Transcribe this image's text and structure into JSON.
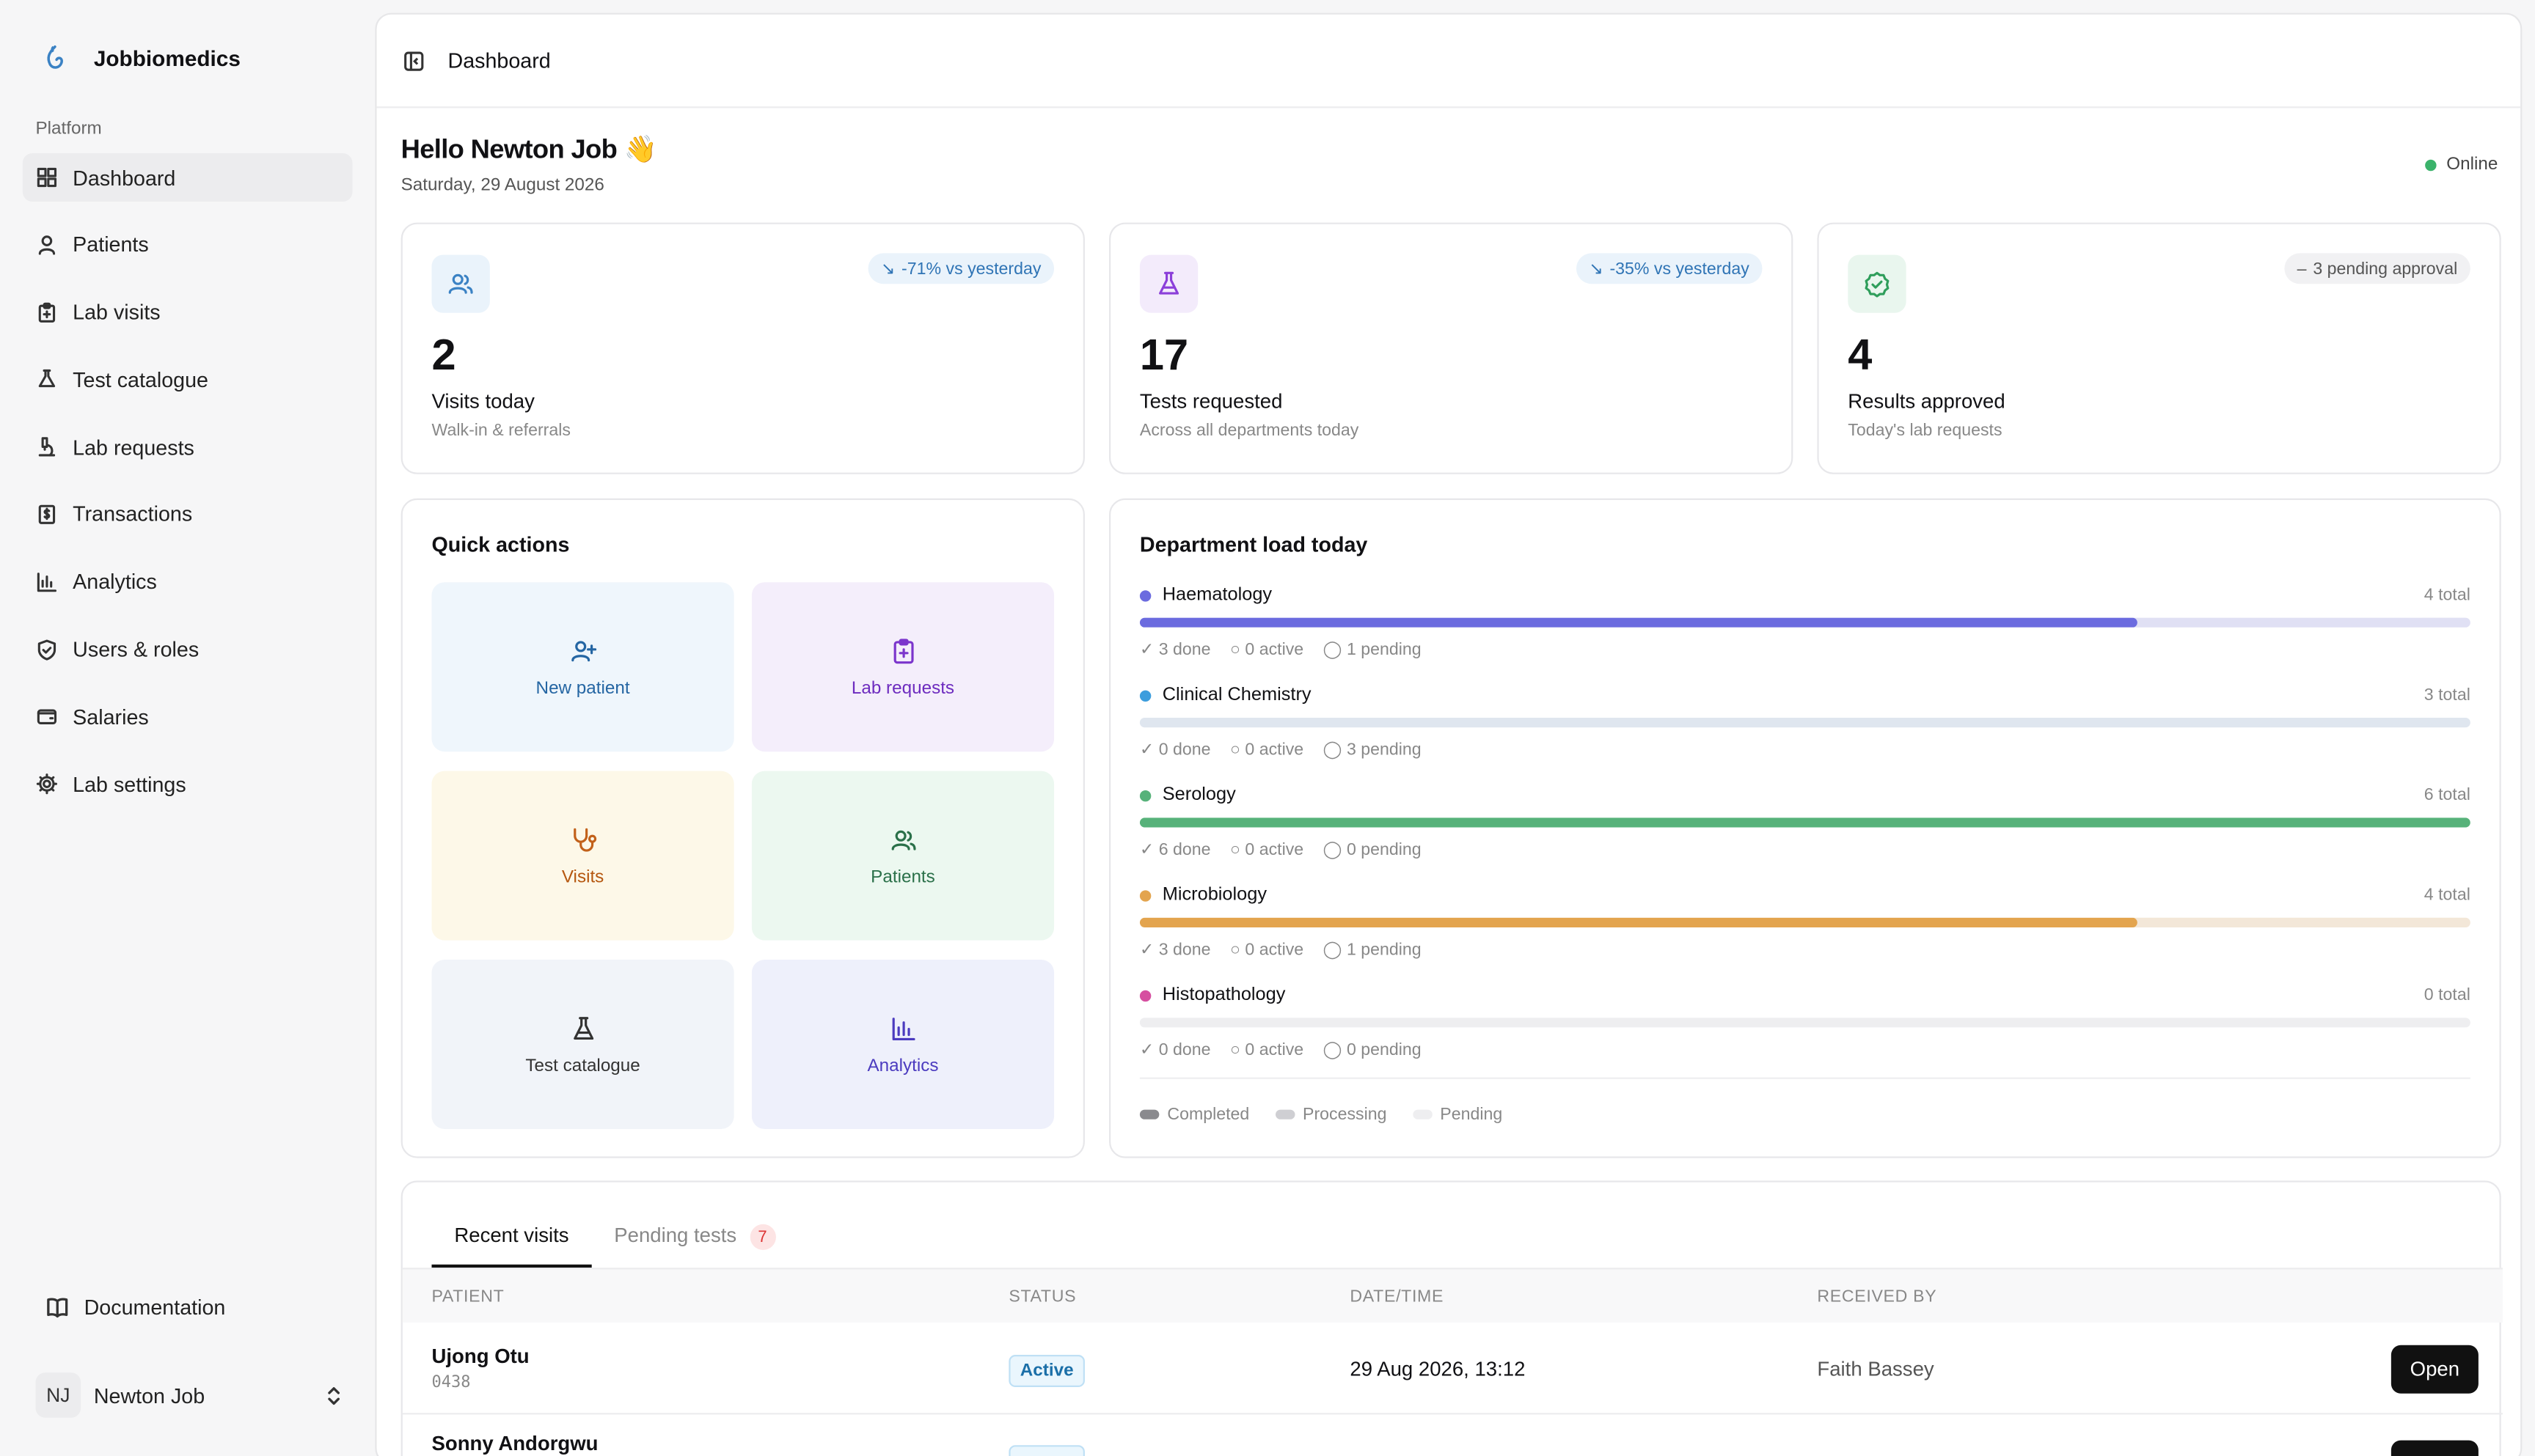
{
  "sidebar": {
    "brand": "Jobbiomedics",
    "group_label": "Platform",
    "items": [
      {
        "label": "Dashboard",
        "icon": "grid-icon",
        "active": true
      },
      {
        "label": "Patients",
        "icon": "user-icon"
      },
      {
        "label": "Lab visits",
        "icon": "clipboard-icon"
      },
      {
        "label": "Test catalogue",
        "icon": "flask-icon"
      },
      {
        "label": "Lab requests",
        "icon": "microscope-icon"
      },
      {
        "label": "Transactions",
        "icon": "receipt-icon"
      },
      {
        "label": "Analytics",
        "icon": "bar-chart-icon"
      },
      {
        "label": "Users & roles",
        "icon": "shield-icon"
      },
      {
        "label": "Salaries",
        "icon": "wallet-icon"
      },
      {
        "label": "Lab settings",
        "icon": "gear-icon"
      }
    ],
    "documentation": "Documentation",
    "user": {
      "initials": "NJ",
      "name": "Newton Job"
    }
  },
  "header": {
    "title": "Dashboard"
  },
  "greeting": {
    "title": "Hello Newton Job 👋",
    "date": "Saturday, 29 August 2026",
    "status": "Online"
  },
  "stats": [
    {
      "value": "2",
      "label": "Visits today",
      "sub": "Walk-in & referrals",
      "badge": "-71% vs yesterday",
      "color": "#3b82c4"
    },
    {
      "value": "17",
      "label": "Tests requested",
      "sub": "Across all departments today",
      "badge": "-35% vs yesterday",
      "color": "#8b3fd9"
    },
    {
      "value": "4",
      "label": "Results approved",
      "sub": "Today's lab requests",
      "badge": "3 pending approval",
      "color": "#2f9e5b"
    }
  ],
  "quick_actions": {
    "title": "Quick actions",
    "tiles": [
      {
        "label": "New patient",
        "icon": "user-plus-icon"
      },
      {
        "label": "Lab requests",
        "icon": "clipboard-plus-icon"
      },
      {
        "label": "Visits",
        "icon": "stethoscope-icon"
      },
      {
        "label": "Patients",
        "icon": "users-icon"
      },
      {
        "label": "Test catalogue",
        "icon": "flask-icon"
      },
      {
        "label": "Analytics",
        "icon": "bar-chart-icon"
      }
    ]
  },
  "departments": {
    "title": "Department load today",
    "items": [
      {
        "name": "Haematology",
        "total": "4 total",
        "done": "3 done",
        "active": "0 active",
        "pending": "1 pending",
        "fraction": 0.75,
        "color": "#6b6bdf",
        "track": "#e0e0f4"
      },
      {
        "name": "Clinical Chemistry",
        "total": "3 total",
        "done": "0 done",
        "active": "0 active",
        "pending": "3 pending",
        "fraction": 0,
        "color": "#3c9ddd",
        "track": "#dfe6ef"
      },
      {
        "name": "Serology",
        "total": "6 total",
        "done": "6 done",
        "active": "0 active",
        "pending": "0 pending",
        "fraction": 1,
        "color": "#57b27a",
        "track": "#dcefe3"
      },
      {
        "name": "Microbiology",
        "total": "4 total",
        "done": "3 done",
        "active": "0 active",
        "pending": "1 pending",
        "fraction": 0.75,
        "color": "#e3a44e",
        "track": "#f3e7d8"
      },
      {
        "name": "Histopathology",
        "total": "0 total",
        "done": "0 done",
        "active": "0 active",
        "pending": "0 pending",
        "fraction": 0,
        "color": "#d64fa0",
        "track": "#eeeef0"
      }
    ],
    "legend": [
      "Completed",
      "Processing",
      "Pending"
    ]
  },
  "recent": {
    "tabs": [
      {
        "label": "Recent visits"
      },
      {
        "label": "Pending tests",
        "count": "7"
      }
    ],
    "columns": [
      "PATIENT",
      "STATUS",
      "DATE/TIME",
      "RECEIVED BY"
    ],
    "rows": [
      {
        "name": "Ujong Otu",
        "id": "0438",
        "status": "Active",
        "datetime": "29 Aug 2026, 13:12",
        "received_by": "Faith Bassey",
        "action": "Open"
      },
      {
        "name": "Sonny Andorgwu",
        "id": "",
        "status": "",
        "datetime": "",
        "received_by": "",
        "action": ""
      }
    ]
  }
}
